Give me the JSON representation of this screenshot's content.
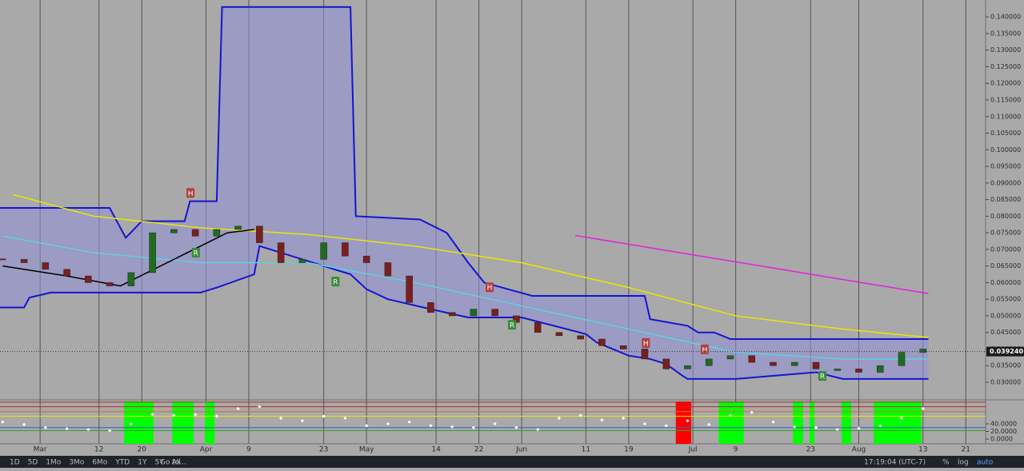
{
  "chart_data": [
    {
      "type": "candlestick",
      "xlim": [
        -7.5,
        176.7
      ],
      "ylim": [
        0.0247,
        0.1451
      ],
      "xticks": [
        {
          "value": 0,
          "label": "Mar"
        },
        {
          "value": 11,
          "label": "12"
        },
        {
          "value": 19,
          "label": "20"
        },
        {
          "value": 31,
          "label": "Apr"
        },
        {
          "value": 39,
          "label": "9"
        },
        {
          "value": 53,
          "label": "23"
        },
        {
          "value": 61,
          "label": "May"
        },
        {
          "value": 74,
          "label": "14"
        },
        {
          "value": 82,
          "label": "22"
        },
        {
          "value": 90,
          "label": "Jun"
        },
        {
          "value": 102,
          "label": "11"
        },
        {
          "value": 110,
          "label": "19"
        },
        {
          "value": 122,
          "label": "Jul"
        },
        {
          "value": 130,
          "label": "9"
        },
        {
          "value": 144,
          "label": "23"
        },
        {
          "value": 153,
          "label": "Aug"
        },
        {
          "value": 165,
          "label": "13"
        },
        {
          "value": 173,
          "label": "21"
        }
      ],
      "yticks": [
        {
          "value": 0.03,
          "label": "0.030000"
        },
        {
          "value": 0.035,
          "label": "0.035000"
        },
        {
          "value": 0.04,
          "label": "0.040000"
        },
        {
          "value": 0.045,
          "label": "0.045000"
        },
        {
          "value": 0.05,
          "label": "0.050000"
        },
        {
          "value": 0.055,
          "label": "0.055000"
        },
        {
          "value": 0.06,
          "label": "0.060000"
        },
        {
          "value": 0.065,
          "label": "0.065000"
        },
        {
          "value": 0.07,
          "label": "0.070000"
        },
        {
          "value": 0.075,
          "label": "0.075000"
        },
        {
          "value": 0.08,
          "label": "0.080000"
        },
        {
          "value": 0.085,
          "label": "0.085000"
        },
        {
          "value": 0.09,
          "label": "0.090000"
        },
        {
          "value": 0.095,
          "label": "0.095000"
        },
        {
          "value": 0.1,
          "label": "0.100000"
        },
        {
          "value": 0.105,
          "label": "0.105000"
        },
        {
          "value": 0.11,
          "label": "0.110000"
        },
        {
          "value": 0.115,
          "label": "0.115000"
        },
        {
          "value": 0.12,
          "label": "0.120000"
        },
        {
          "value": 0.125,
          "label": "0.125000"
        },
        {
          "value": 0.13,
          "label": "0.130000"
        },
        {
          "value": 0.135,
          "label": "0.135000"
        },
        {
          "value": 0.14,
          "label": "0.140000"
        }
      ],
      "x": [
        -7,
        -3,
        1,
        5,
        9,
        13,
        17,
        21,
        25,
        29,
        33,
        37,
        41,
        45,
        49,
        53,
        57,
        61,
        65,
        69,
        73,
        77,
        81,
        85,
        89,
        93,
        97,
        101,
        105,
        109,
        113,
        117,
        121,
        125,
        129,
        133,
        137,
        141,
        145,
        149,
        153,
        157,
        161,
        165
      ],
      "close": [
        0.067,
        0.066,
        0.064,
        0.062,
        0.06,
        0.059,
        0.063,
        0.075,
        0.076,
        0.074,
        0.076,
        0.077,
        0.072,
        0.066,
        0.067,
        0.072,
        0.068,
        0.066,
        0.062,
        0.054,
        0.051,
        0.05,
        0.052,
        0.05,
        0.048,
        0.045,
        0.044,
        0.043,
        0.041,
        0.04,
        0.037,
        0.034,
        0.035,
        0.037,
        0.038,
        0.036,
        0.035,
        0.036,
        0.034,
        0.034,
        0.033,
        0.035,
        0.039,
        0.04
      ],
      "up_color": "#1f6b1f",
      "down_color": "#7a1f1f",
      "channel": {
        "color": "#1515d0",
        "fill": "#8f8fd8",
        "upper": {
          "x": [
            -7.5,
            13,
            16,
            19,
            27,
            28,
            33,
            34,
            58,
            59,
            71,
            76,
            80,
            83,
            92,
            100,
            113,
            114,
            121,
            123,
            126,
            129,
            131,
            134,
            166
          ],
          "values": [
            0.0825,
            0.0825,
            0.0735,
            0.0785,
            0.0785,
            0.0845,
            0.0845,
            0.143,
            0.143,
            0.08,
            0.079,
            0.075,
            0.066,
            0.06,
            0.056,
            0.056,
            0.056,
            0.049,
            0.047,
            0.045,
            0.045,
            0.043,
            0.043,
            0.043,
            0.043
          ]
        },
        "lower": {
          "x": [
            -7.5,
            -3,
            -2,
            2,
            13,
            30,
            33,
            40,
            41,
            58,
            61,
            65,
            73,
            80,
            90,
            96,
            102,
            104,
            110,
            114,
            117,
            120,
            121,
            130,
            145,
            150,
            166
          ],
          "values": [
            0.0525,
            0.0525,
            0.0555,
            0.057,
            0.057,
            0.057,
            0.0585,
            0.0625,
            0.071,
            0.0625,
            0.058,
            0.055,
            0.052,
            0.0495,
            0.0495,
            0.047,
            0.0445,
            0.042,
            0.038,
            0.037,
            0.0355,
            0.032,
            0.031,
            0.031,
            0.033,
            0.031,
            0.031
          ]
        }
      },
      "lines": [
        {
          "color": "#e8e800",
          "x": [
            -5,
            10,
            30,
            50,
            70,
            90,
            110,
            130,
            150,
            166
          ],
          "values": [
            0.0865,
            0.08,
            0.0765,
            0.0745,
            0.071,
            0.066,
            0.0585,
            0.05,
            0.046,
            0.0435
          ]
        },
        {
          "color": "#e020e0",
          "x": [
            100,
            166
          ],
          "values": [
            0.0742,
            0.0567
          ]
        },
        {
          "color": "#5fd0e0",
          "x": [
            -7,
            10,
            30,
            50,
            70,
            90,
            110,
            130,
            150,
            166
          ],
          "values": [
            0.074,
            0.069,
            0.066,
            0.066,
            0.06,
            0.053,
            0.046,
            0.039,
            0.037,
            0.037
          ]
        },
        {
          "color": "#000000",
          "x": [
            -7,
            5,
            15,
            25,
            35,
            40
          ],
          "values": [
            0.065,
            0.062,
            0.059,
            0.067,
            0.075,
            0.076
          ]
        }
      ],
      "annotations": [
        {
          "text": "H",
          "x": 28.1,
          "value": 0.087,
          "color": "#b04040"
        },
        {
          "text": "R",
          "x": 29.1,
          "value": 0.069,
          "color": "#3a8a3a"
        },
        {
          "text": "R",
          "x": 55.2,
          "value": 0.0603,
          "color": "#3a8a3a"
        },
        {
          "text": "H",
          "x": 84,
          "value": 0.0586,
          "color": "#b04040"
        },
        {
          "text": "R",
          "x": 88.2,
          "value": 0.0473,
          "color": "#3a8a3a"
        },
        {
          "text": "H",
          "x": 113.2,
          "value": 0.0418,
          "color": "#b04040"
        },
        {
          "text": "H",
          "x": 124.2,
          "value": 0.0399,
          "color": "#b04040"
        },
        {
          "text": "R",
          "x": 146.2,
          "value": 0.0319,
          "color": "#3a8a3a"
        }
      ],
      "last_price": {
        "value": 0.03924,
        "label": "0.039240"
      }
    },
    {
      "type": "indicator",
      "ylim": [
        -12.6,
        103
      ],
      "yticks": [
        {
          "value": 0,
          "label": "0.0000"
        },
        {
          "value": 20,
          "label": "20.0000"
        },
        {
          "value": 40,
          "label": "40.0000"
        }
      ],
      "levels": [
        {
          "value": 97,
          "color": "#b03030"
        },
        {
          "value": 85,
          "color": "#b03030"
        },
        {
          "value": 72,
          "color": "#d07030"
        },
        {
          "value": 60,
          "color": "#e8e800"
        },
        {
          "value": 30,
          "color": "#3060c0"
        },
        {
          "value": 22,
          "color": "#30a030"
        }
      ],
      "highlights": [
        {
          "from": 15.7,
          "to": 21.2,
          "color": "#00ff00"
        },
        {
          "from": 24.7,
          "to": 28.7,
          "color": "#00ff00"
        },
        {
          "from": 30.8,
          "to": 32.6,
          "color": "#00ff00"
        },
        {
          "from": 118.8,
          "to": 121.7,
          "color": "#ff0000"
        },
        {
          "from": 126.8,
          "to": 131.5,
          "color": "#00ff00"
        },
        {
          "from": 140.7,
          "to": 142.6,
          "color": "#00ff00"
        },
        {
          "from": 143.8,
          "to": 144.7,
          "color": "#00ff00"
        },
        {
          "from": 149.8,
          "to": 151.6,
          "color": "#00ff00"
        },
        {
          "from": 155.8,
          "to": 164.7,
          "color": "#00ff00"
        }
      ],
      "x": [
        -7,
        -3,
        1,
        5,
        9,
        13,
        17,
        21,
        25,
        29,
        33,
        37,
        41,
        45,
        49,
        53,
        57,
        61,
        65,
        69,
        73,
        77,
        81,
        85,
        89,
        93,
        97,
        101,
        105,
        109,
        113,
        117,
        121,
        125,
        129,
        133,
        137,
        141,
        145,
        149,
        153,
        157,
        161,
        165
      ],
      "values": [
        45,
        38,
        30,
        27,
        25,
        22,
        40,
        65,
        62,
        64,
        60,
        80,
        85,
        55,
        48,
        60,
        55,
        35,
        40,
        45,
        35,
        32,
        30,
        40,
        30,
        25,
        55,
        62,
        50,
        55,
        40,
        35,
        48,
        38,
        62,
        70,
        45,
        32,
        30,
        25,
        28,
        35,
        55,
        80
      ],
      "color": "#ffffff"
    }
  ],
  "toolbar": {
    "ranges": [
      "1D",
      "5D",
      "1Mo",
      "3Mo",
      "6Mo",
      "YTD",
      "1Y",
      "5Y",
      "All"
    ],
    "goto": "Go to...",
    "clock": "17:19:04 (UTC-7)",
    "percent": "%",
    "log": "log",
    "auto": "auto"
  }
}
